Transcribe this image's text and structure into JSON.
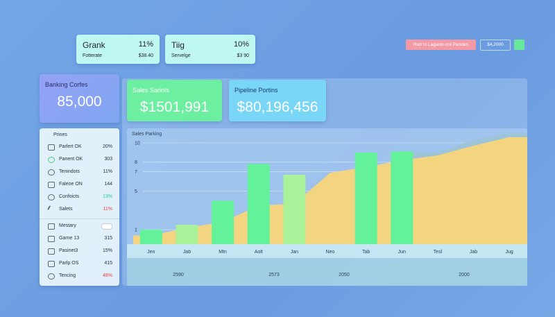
{
  "top_cards": [
    {
      "name": "Grank",
      "pct": "11%",
      "label": "Fotterate",
      "amount": "$38.40"
    },
    {
      "name": "Tiig",
      "pct": "10%",
      "label": "Servelge",
      "amount": "$3 90"
    }
  ],
  "actions": {
    "button": "Red to Lagsion-ont Pandan",
    "dropdown": "$4,2000"
  },
  "stat_cards": [
    {
      "title": "Banking Corfes",
      "value": "85,000"
    },
    {
      "title": "Sales Sarints",
      "value": "$1501,991"
    },
    {
      "title": "Pipeline Portins",
      "value": "$80,196,456"
    }
  ],
  "sidebar": {
    "header": "Prines",
    "rows": [
      [
        "Parlert OK",
        "20%"
      ],
      [
        "Panent OK",
        "303"
      ],
      [
        "Tenindots",
        "11%"
      ],
      [
        "Faleoe ON",
        "144"
      ],
      [
        "Confoicts",
        "13%"
      ],
      [
        "Salets",
        "11%"
      ]
    ],
    "section": "Mestary",
    "rows2": [
      [
        "Garne 13",
        "315"
      ],
      [
        "Pasinet3",
        "15%"
      ],
      [
        "Parlp OS",
        "415"
      ],
      [
        "Tencing",
        "48%"
      ]
    ]
  },
  "chart_data": {
    "type": "bar-area",
    "title": "Sales Parking",
    "categories": [
      "Jen",
      "Jab",
      "Mtn",
      "Aolt",
      "Jan",
      "Neo",
      "Tab",
      "Jun",
      "Tesl",
      "Jab",
      "Jug"
    ],
    "series": [
      {
        "type": "bar",
        "colors": [
          "#63f29a",
          "#a9f29a",
          "#63f29a",
          "#63f29a",
          "#a9f29a",
          null,
          "#63f29a",
          "#63f29a",
          null,
          null,
          null
        ],
        "values": [
          1.0,
          1.5,
          4.0,
          7.8,
          6.7,
          null,
          9.0,
          9.1,
          null,
          null,
          null
        ]
      },
      {
        "type": "area",
        "color": "#f8d57a",
        "values": [
          0.4,
          1.2,
          1.8,
          3.5,
          3.7,
          6.9,
          7.5,
          8.2,
          8.7,
          9.7,
          10.6
        ]
      },
      {
        "type": "area",
        "color": "#9dc4d6",
        "values": [
          null,
          null,
          null,
          null,
          null,
          null,
          null,
          null,
          9.0,
          10.3,
          11.0
        ]
      }
    ],
    "ylim": [
      -0.5,
      11
    ],
    "yticks": [
      10,
      8,
      7,
      5,
      1
    ],
    "footer": [
      "2590",
      "2573",
      "2050",
      "2000"
    ]
  }
}
